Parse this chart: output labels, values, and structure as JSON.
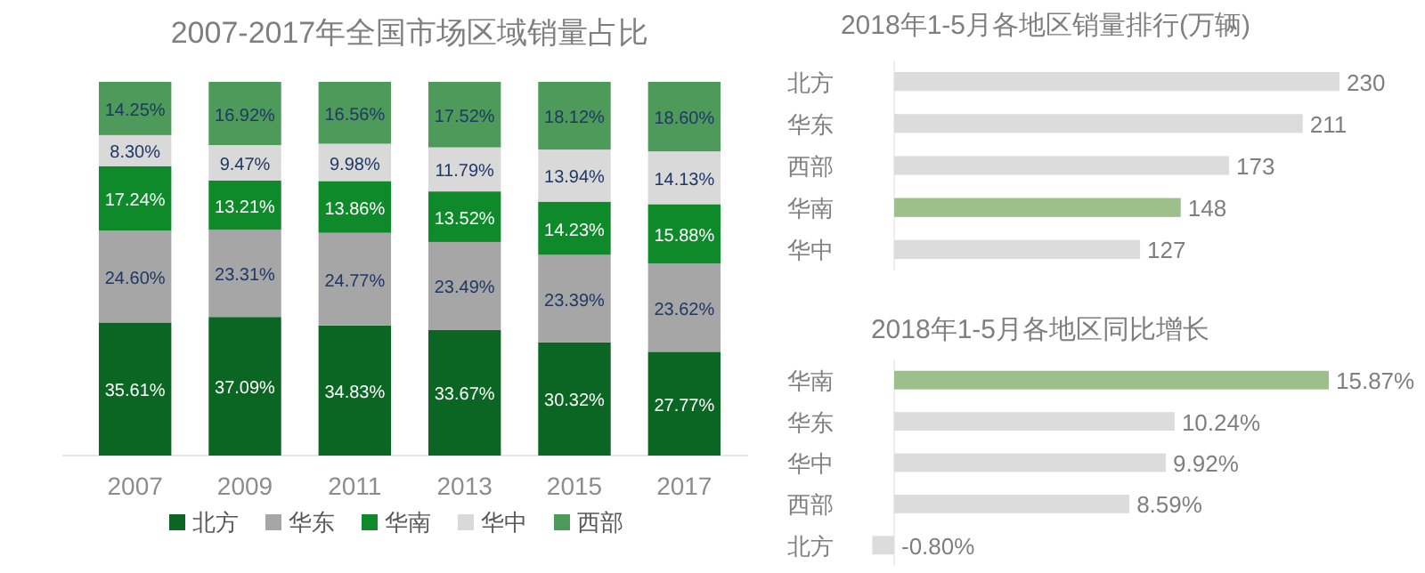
{
  "chart_data": [
    {
      "type": "bar",
      "title": "2007-2017年全国市场区域销量占比",
      "categories": [
        "2007",
        "2009",
        "2011",
        "2013",
        "2015",
        "2017"
      ],
      "stacked": true,
      "legend": "bottom",
      "series": [
        {
          "name": "北方",
          "color": "#0b6624",
          "values": [
            35.61,
            37.09,
            34.83,
            33.67,
            30.32,
            27.77
          ],
          "value_labels": [
            "35.61%",
            "37.09%",
            "34.83%",
            "33.67%",
            "30.32%",
            "27.77%"
          ]
        },
        {
          "name": "华东",
          "color": "#a6a6a6",
          "values": [
            24.6,
            23.31,
            24.77,
            23.49,
            23.39,
            23.62
          ],
          "value_labels": [
            "24.60%",
            "23.31%",
            "24.77%",
            "23.49%",
            "23.39%",
            "23.62%"
          ]
        },
        {
          "name": "华南",
          "color": "#0e8a2a",
          "values": [
            17.24,
            13.21,
            13.86,
            13.52,
            14.23,
            15.88
          ],
          "value_labels": [
            "17.24%",
            "13.21%",
            "13.86%",
            "13.52%",
            "14.23%",
            "15.88%"
          ]
        },
        {
          "name": "华中",
          "color": "#d9d9d9",
          "values": [
            8.3,
            9.47,
            9.98,
            11.79,
            13.94,
            14.13
          ],
          "value_labels": [
            "8.30%",
            "9.47%",
            "9.98%",
            "11.79%",
            "13.94%",
            "14.13%"
          ]
        },
        {
          "name": "西部",
          "color": "#4e9a5a",
          "values": [
            14.25,
            16.92,
            16.56,
            17.52,
            18.12,
            18.6
          ],
          "value_labels": [
            "14.25%",
            "16.92%",
            "16.56%",
            "17.52%",
            "18.12%",
            "18.60%"
          ]
        }
      ]
    },
    {
      "type": "bar",
      "orientation": "horizontal",
      "title": "2018年1-5月各地区销量排行(万辆)",
      "categories": [
        "北方",
        "华东",
        "西部",
        "华南",
        "华中"
      ],
      "values": [
        230,
        211,
        173,
        148,
        127
      ],
      "colors": [
        "#dcdcdc",
        "#dcdcdc",
        "#dcdcdc",
        "#9cc08a",
        "#dcdcdc"
      ],
      "data_labels": true
    },
    {
      "type": "bar",
      "orientation": "horizontal",
      "title": "2018年1-5月各地区同比增长",
      "categories": [
        "华南",
        "华东",
        "华中",
        "西部",
        "北方"
      ],
      "values": [
        15.87,
        10.24,
        9.92,
        8.59,
        -0.8
      ],
      "colors": [
        "#9cc08a",
        "#dcdcdc",
        "#dcdcdc",
        "#dcdcdc",
        "#dcdcdc"
      ],
      "value_labels": [
        "15.87%",
        "10.24%",
        "9.92%",
        "8.59%",
        "-0.80%"
      ]
    }
  ]
}
